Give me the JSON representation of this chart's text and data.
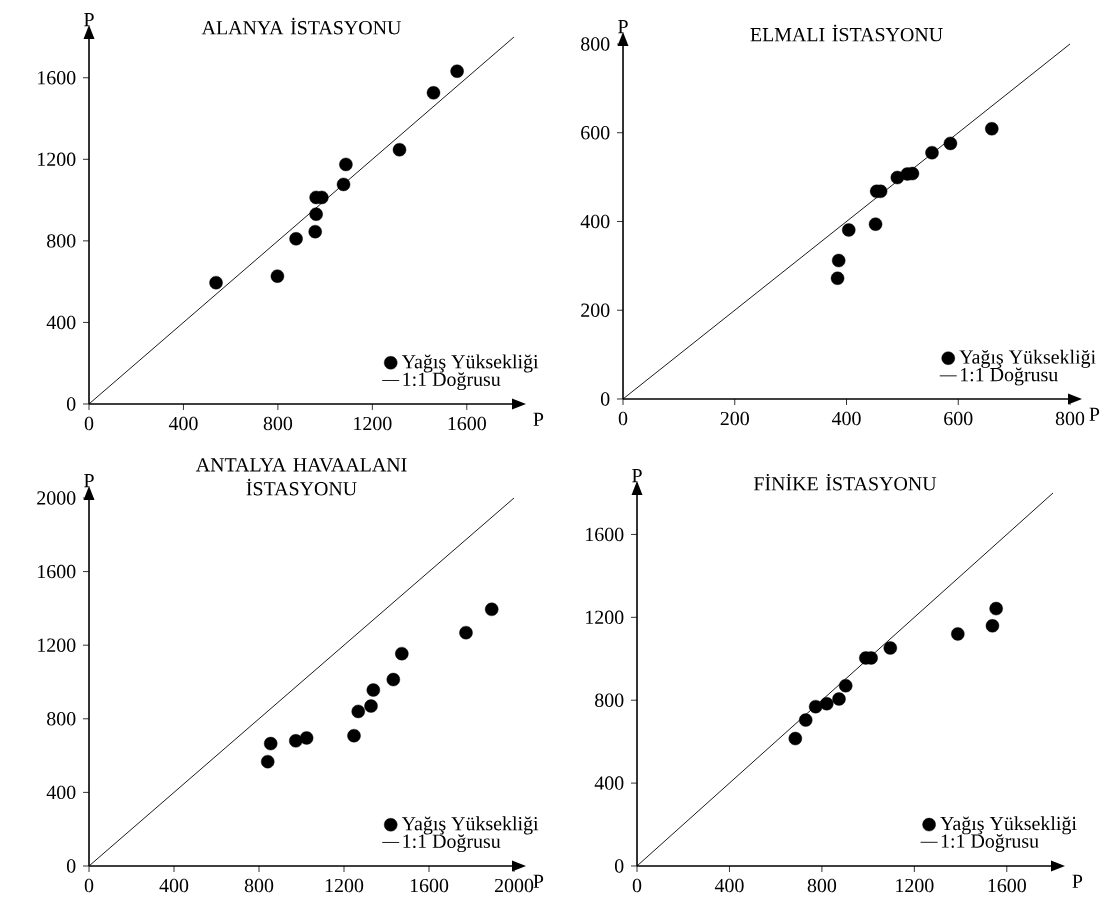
{
  "chart_data": [
    {
      "type": "scatter",
      "title": "ALANYA İSTASYONU",
      "xlabel": "P",
      "ylabel": "P",
      "xlim": [
        0,
        1800
      ],
      "ylim": [
        0,
        1800
      ],
      "xticks": [
        0,
        400,
        800,
        1200,
        1600
      ],
      "yticks": [
        0,
        400,
        800,
        1200,
        1600
      ],
      "legend": "bottom right",
      "marker": "circle",
      "series": [
        {
          "name": "Yağış Yüksekliği",
          "type": "scatter",
          "color": "#000000",
          "x": [
            538,
            798,
            877,
            958,
            962,
            962,
            986,
            1078,
            1088,
            1315,
            1459,
            1559
          ],
          "values": [
            595,
            627,
            810,
            845,
            931,
            1013,
            1013,
            1077,
            1175,
            1247,
            1526,
            1632
          ]
        },
        {
          "name": "1:1 Doğrusu",
          "type": "line",
          "marker": "none",
          "color": "#000000",
          "x": [
            0,
            1800
          ],
          "values": [
            0,
            1800
          ]
        }
      ]
    },
    {
      "type": "scatter",
      "title": "ELMALI İSTASYONU",
      "xlabel": "P",
      "ylabel": "P",
      "xlim": [
        0,
        800
      ],
      "ylim": [
        0,
        800
      ],
      "xticks": [
        0,
        200,
        400,
        600,
        800
      ],
      "yticks": [
        0,
        200,
        400,
        600,
        800
      ],
      "legend": "bottom right",
      "marker": "circle",
      "series": [
        {
          "name": "Yağış Yüksekliği",
          "type": "scatter",
          "color": "#000000",
          "x": [
            384,
            386,
            404,
            452,
            454,
            461,
            491,
            509,
            518,
            553,
            586,
            660
          ],
          "values": [
            272,
            312,
            381,
            394,
            468,
            468,
            499,
            507,
            508,
            555,
            576,
            609
          ]
        },
        {
          "name": "1:1 Doğrusu",
          "type": "line",
          "marker": "none",
          "color": "#000000",
          "x": [
            0,
            800
          ],
          "values": [
            0,
            800
          ]
        }
      ]
    },
    {
      "type": "scatter",
      "title": "ANTALYA HAVAALANI İSTASYONU",
      "xlabel": "P",
      "ylabel": "P",
      "xlim": [
        0,
        2000
      ],
      "ylim": [
        0,
        2000
      ],
      "xticks": [
        0,
        400,
        800,
        1200,
        1600,
        2000
      ],
      "yticks": [
        0,
        400,
        800,
        1200,
        1600,
        2000
      ],
      "legend": "bottom right",
      "marker": "circle",
      "series": [
        {
          "name": "Yağış Yüksekliği",
          "type": "scatter",
          "color": "#000000",
          "x": [
            841,
            855,
            973,
            1024,
            1247,
            1267,
            1327,
            1338,
            1432,
            1472,
            1774,
            1895
          ],
          "values": [
            567,
            665,
            680,
            696,
            708,
            840,
            869,
            956,
            1013,
            1154,
            1268,
            1395
          ]
        },
        {
          "name": "1:1 Doğrusu",
          "type": "line",
          "marker": "none",
          "color": "#000000",
          "x": [
            0,
            2000
          ],
          "values": [
            0,
            2000
          ]
        }
      ]
    },
    {
      "type": "scatter",
      "title": "FİNİKE İSTASYONU",
      "xlabel": "P",
      "ylabel": "P",
      "xlim": [
        0,
        1800
      ],
      "ylim": [
        0,
        1800
      ],
      "xticks": [
        0,
        400,
        800,
        1200,
        1600
      ],
      "yticks": [
        0,
        400,
        800,
        1200,
        1600
      ],
      "legend": "bottom right",
      "marker": "circle",
      "series": [
        {
          "name": "Yağış Yüksekliği",
          "type": "scatter",
          "color": "#000000",
          "x": [
            685,
            730,
            773,
            821,
            874,
            903,
            990,
            1013,
            1096,
            1388,
            1538,
            1554
          ],
          "values": [
            615,
            704,
            769,
            783,
            806,
            870,
            1004,
            1004,
            1052,
            1120,
            1159,
            1242
          ]
        },
        {
          "name": "1:1 Doğrusu",
          "type": "line",
          "marker": "none",
          "color": "#000000",
          "x": [
            0,
            1800
          ],
          "values": [
            0,
            1800
          ]
        }
      ]
    }
  ]
}
